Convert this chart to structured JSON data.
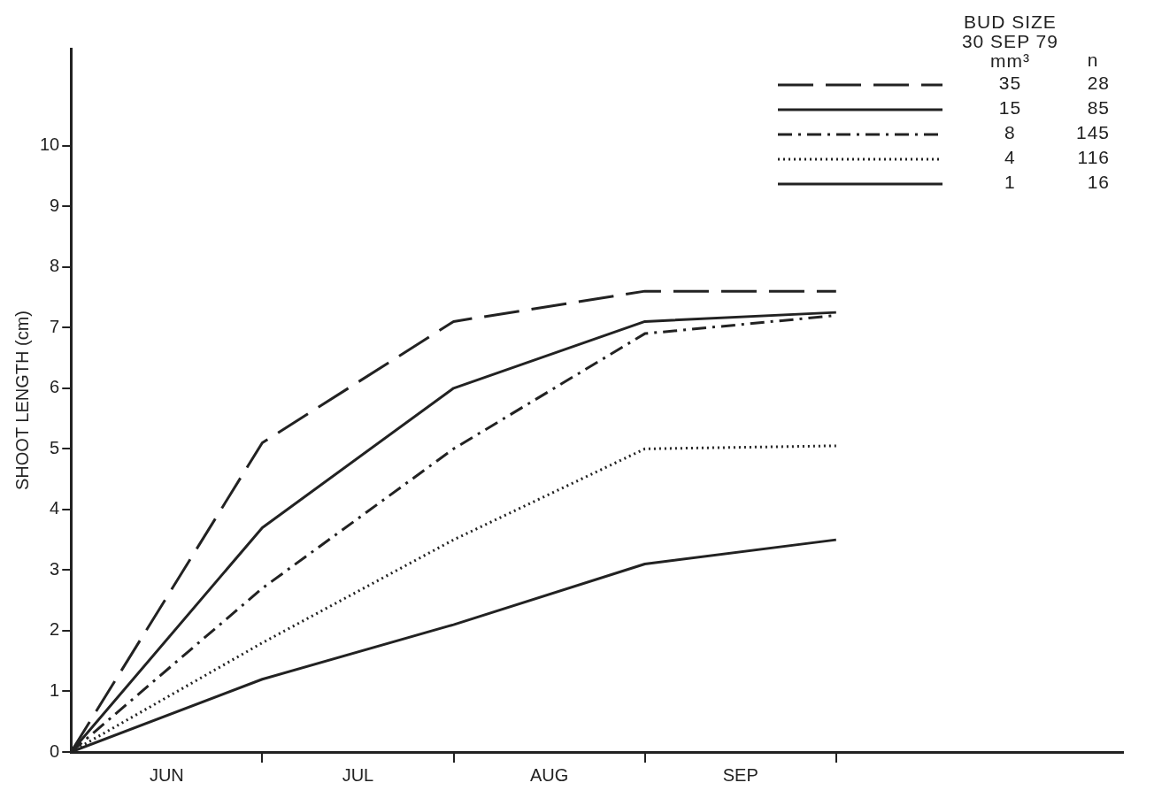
{
  "chart_data": {
    "type": "line",
    "ylabel": "SHOOT LENGTH (cm)",
    "legend_title": "BUD SIZE\n30 SEP 79\nmm³",
    "categories": [
      null,
      "JUN",
      null,
      "JUL",
      null,
      "AUG",
      null,
      "SEP",
      null,
      null,
      null,
      null
    ],
    "ylim": [
      0,
      11.6
    ],
    "yticks": [
      0,
      1,
      2,
      3,
      4,
      5,
      6,
      7,
      8,
      9,
      10
    ],
    "grid": false,
    "legend": "top right",
    "marker": "none",
    "series": [
      {
        "name": "35",
        "color": "#222222",
        "line_style": "dashed",
        "values": [
          0,
          null,
          5.1,
          null,
          7.1,
          null,
          7.6,
          null,
          7.6,
          null,
          null,
          null
        ]
      },
      {
        "name": "15",
        "color": "#222222",
        "line_style": "solid",
        "values": [
          0,
          null,
          3.7,
          null,
          6.0,
          null,
          7.1,
          null,
          7.25,
          null,
          null,
          null
        ]
      },
      {
        "name": "8",
        "color": "#222222",
        "line_style": "dashdot",
        "values": [
          0,
          null,
          2.7,
          null,
          5.0,
          null,
          6.9,
          null,
          7.2,
          null,
          null,
          null
        ]
      },
      {
        "name": "4",
        "color": "#222222",
        "line_style": "dotted",
        "values": [
          0,
          null,
          1.8,
          null,
          3.5,
          null,
          5.0,
          null,
          5.05,
          null,
          null,
          null
        ]
      },
      {
        "name": "1",
        "color": "#222222",
        "line_style": "solid",
        "values": [
          0,
          null,
          1.2,
          null,
          2.1,
          null,
          3.1,
          null,
          3.5,
          null,
          null,
          null
        ]
      }
    ],
    "annotations": [
      "n",
      "28",
      "85",
      "145",
      "116",
      "16"
    ]
  }
}
